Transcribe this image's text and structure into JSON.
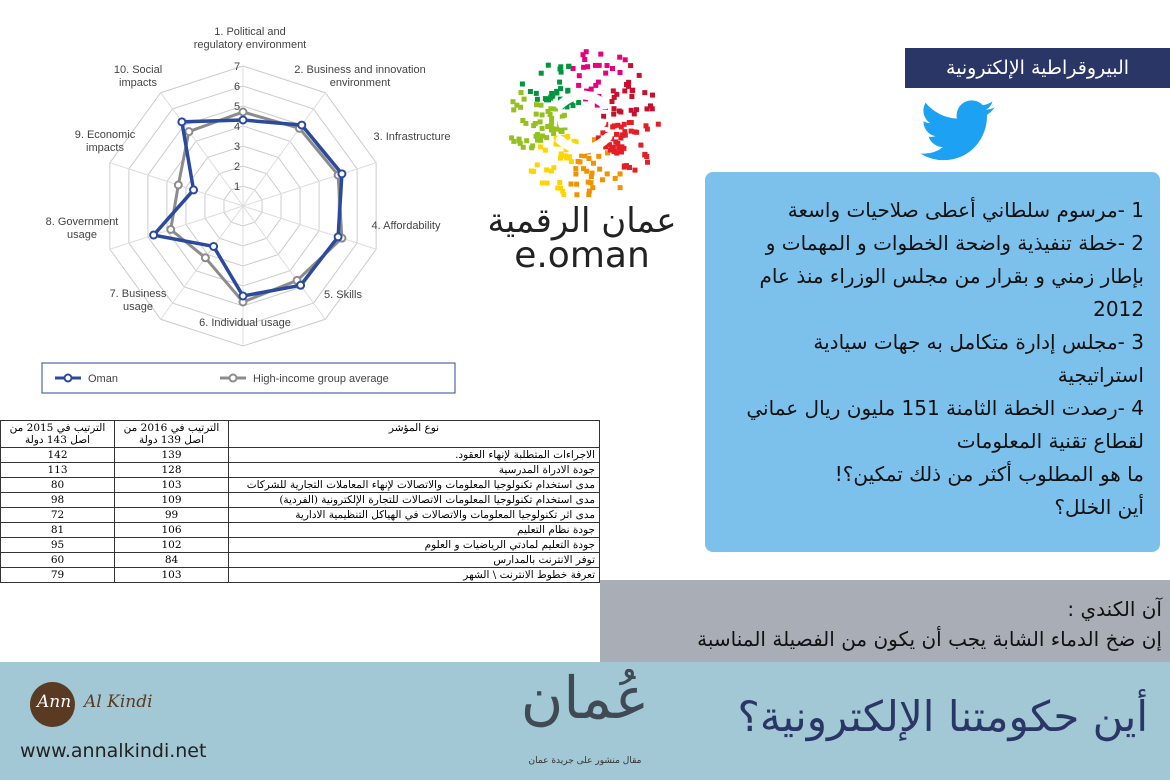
{
  "radar": {
    "axes": [
      [
        "1. Political and",
        "regulatory environment"
      ],
      [
        "2. Business and innovation",
        "environment"
      ],
      [
        "3. Infrastructure"
      ],
      [
        "4. Affordability"
      ],
      [
        "5. Skills"
      ],
      [
        "6. Individual usage"
      ],
      [
        "7. Business",
        "usage"
      ],
      [
        "8. Government",
        "usage"
      ],
      [
        "9. Economic",
        "impacts"
      ],
      [
        "10. Social",
        "impacts"
      ]
    ],
    "rlim": [
      0,
      7
    ],
    "ticks": [
      1,
      2,
      3,
      4,
      5,
      6,
      7
    ],
    "series": [
      {
        "name": "Oman",
        "color": "#2b4a9b",
        "values": [
          4.3,
          5.0,
          5.2,
          5.0,
          4.9,
          4.5,
          2.5,
          4.7,
          2.6,
          5.2
        ]
      },
      {
        "name": "High-income group average",
        "color": "#8c8c8c",
        "values": [
          4.7,
          4.8,
          5.0,
          5.2,
          4.6,
          4.8,
          3.2,
          3.8,
          3.4,
          4.6
        ]
      }
    ]
  },
  "table": {
    "headers": [
      "نوع المؤشر",
      "الترتيب في 2016 من اصل 139 دولة",
      "الترتيب في 2015 من اصل 143 دولة"
    ],
    "rows": [
      [
        "الاجراءات المتطلبة لإنهاء العقود.",
        "139",
        "142"
      ],
      [
        "جودة الادراة المدرسية",
        "128",
        "113"
      ],
      [
        "مدى استخدام تكنولوجيا المعلومات والاتصالات لإنهاء المعاملات التجارية للشركات",
        "103",
        "80"
      ],
      [
        "مدى استخدام تكنولوجيا المعلومات الاتصالات للتجارة الإلكترونية (الفردية)",
        "109",
        "98"
      ],
      [
        "مدى اثر تكنولوجيا المعلومات والاتصالات في الهياكل التنظيمية الادارية",
        "99",
        "72"
      ],
      [
        "جودة نظام التعليم",
        "106",
        "81"
      ],
      [
        "جودة التعليم لمادتي الرياضيات و العلوم",
        "102",
        "95"
      ],
      [
        "توفر الانترنت بالمدارس",
        "84",
        "60"
      ],
      [
        "تعرفة خطوط الانترنت \\ الشهر",
        "103",
        "79"
      ]
    ]
  },
  "logo": {
    "arabic": "عمان الرقمية",
    "latin": "e.oman"
  },
  "section_title": "البيروقراطية الإلكترونية",
  "tweet_lines": [
    "1 -مرسوم سلطاني أعطى صلاحيات واسعة",
    "2 -خطة تنفيذية واضحة الخطوات و المهمات و",
    "بإطار زمني و بقرار من مجلس الوزراء منذ عام",
    "2012",
    "3 -مجلس إدارة متكامل به جهات سيادية",
    "استراتيجية",
    "4 -رصدت الخطة الثامنة 151 مليون ريال عماني",
    "لقطاع تقنية المعلومات",
    "ما هو المطلوب أكثر من ذلك  تمكين؟!",
    "أين الخلل؟"
  ],
  "quote": {
    "author": "آن الكندي :",
    "text": "إن ضخ الدماء الشابة يجب أن يكون من الفصيلة المناسبة"
  },
  "footer": {
    "brand_first": "Ann",
    "brand_last": "Al Kindi",
    "url": "www.annalkindi.net",
    "newspaper": "عُمان",
    "newspaper_caption": "مقال منشور على جريدة عمان",
    "headline": "أين حكومتنا الإلكترونية؟"
  }
}
